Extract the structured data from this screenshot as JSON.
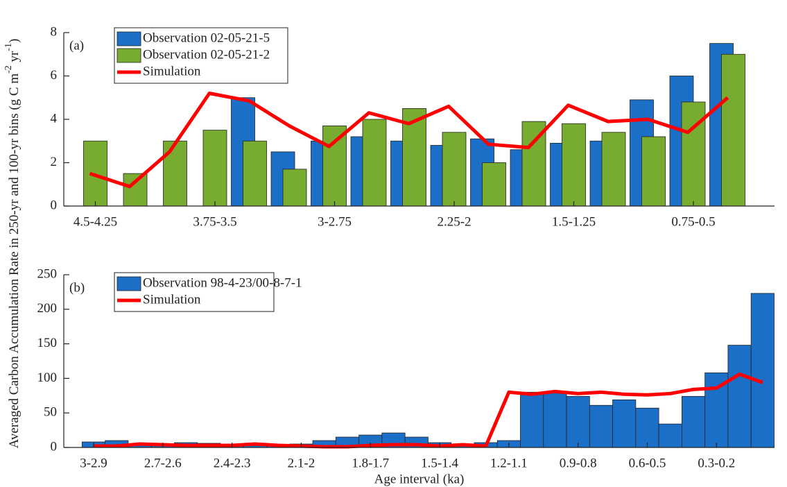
{
  "ylabel": [
    "Averaged Carbon Accumulation Rate in 250-yr and 100-yr bins (g C m",
    "-2",
    " yr",
    "-1",
    ")"
  ],
  "chart_data": [
    {
      "type": "bar",
      "panel_label": "(a)",
      "categories": [
        "4.5-4.25",
        null,
        null,
        "3.75-3.5",
        null,
        null,
        "3-2.75",
        null,
        null,
        "2.25-2",
        null,
        null,
        "1.5-1.25",
        null,
        null,
        "0.75-0.5",
        null
      ],
      "series": [
        {
          "name": "Observation 02-05-21-5",
          "type": "bar",
          "color": "#1b6fc7",
          "values": [
            null,
            null,
            null,
            null,
            5.0,
            2.5,
            3.0,
            3.2,
            3.0,
            2.8,
            3.1,
            2.6,
            2.9,
            3.0,
            4.9,
            6.0,
            7.5
          ]
        },
        {
          "name": "Observation 02-05-21-2",
          "type": "bar",
          "color": "#77ac30",
          "values": [
            3.0,
            1.5,
            3.0,
            3.5,
            3.0,
            1.7,
            3.7,
            4.0,
            4.5,
            3.4,
            2.0,
            3.9,
            3.8,
            3.4,
            3.2,
            4.8,
            7.0
          ]
        },
        {
          "name": "Simulation",
          "type": "line",
          "color": "#ff0000",
          "values": [
            1.5,
            0.9,
            2.5,
            5.2,
            4.85,
            3.7,
            2.75,
            4.3,
            3.8,
            4.6,
            2.85,
            2.7,
            4.65,
            3.9,
            4.0,
            3.4,
            5.0
          ]
        }
      ],
      "ylim": [
        0,
        8
      ],
      "yticks": [
        0,
        2,
        4,
        6,
        8
      ],
      "legend": "upper-left"
    },
    {
      "type": "bar",
      "panel_label": "(b)",
      "xlabel": "Age interval (ka)",
      "categories": [
        "3-2.9",
        null,
        null,
        "2.7-2.6",
        null,
        null,
        "2.4-2.3",
        null,
        null,
        "2.1-2",
        null,
        null,
        "1.8-1.7",
        null,
        null,
        "1.5-1.4",
        null,
        null,
        "1.2-1.1",
        null,
        null,
        "0.9-0.8",
        null,
        null,
        "0.6-0.5",
        null,
        null,
        "0.3-0.2",
        null,
        null
      ],
      "series": [
        {
          "name": "Observation 98-4-23/00-8-7-1",
          "type": "bar",
          "color": "#1b6fc7",
          "values": [
            8,
            10,
            5,
            5,
            7,
            6,
            4,
            6,
            3,
            5,
            10,
            15,
            18,
            21,
            15,
            7,
            5,
            7,
            10,
            80,
            79,
            74,
            61,
            69,
            57,
            34,
            74,
            108,
            148,
            223
          ]
        },
        {
          "name": "Simulation",
          "type": "line",
          "color": "#ff0000",
          "values": [
            2,
            2,
            5,
            4,
            3,
            3,
            3,
            5,
            3,
            2,
            1,
            1,
            3,
            4,
            4,
            2,
            4,
            2,
            80,
            77,
            81,
            78,
            80,
            77,
            76,
            78,
            84,
            86,
            106,
            94
          ]
        }
      ],
      "ylim": [
        0,
        250
      ],
      "yticks": [
        0,
        50,
        100,
        150,
        200,
        250
      ],
      "legend": "upper-left"
    }
  ]
}
